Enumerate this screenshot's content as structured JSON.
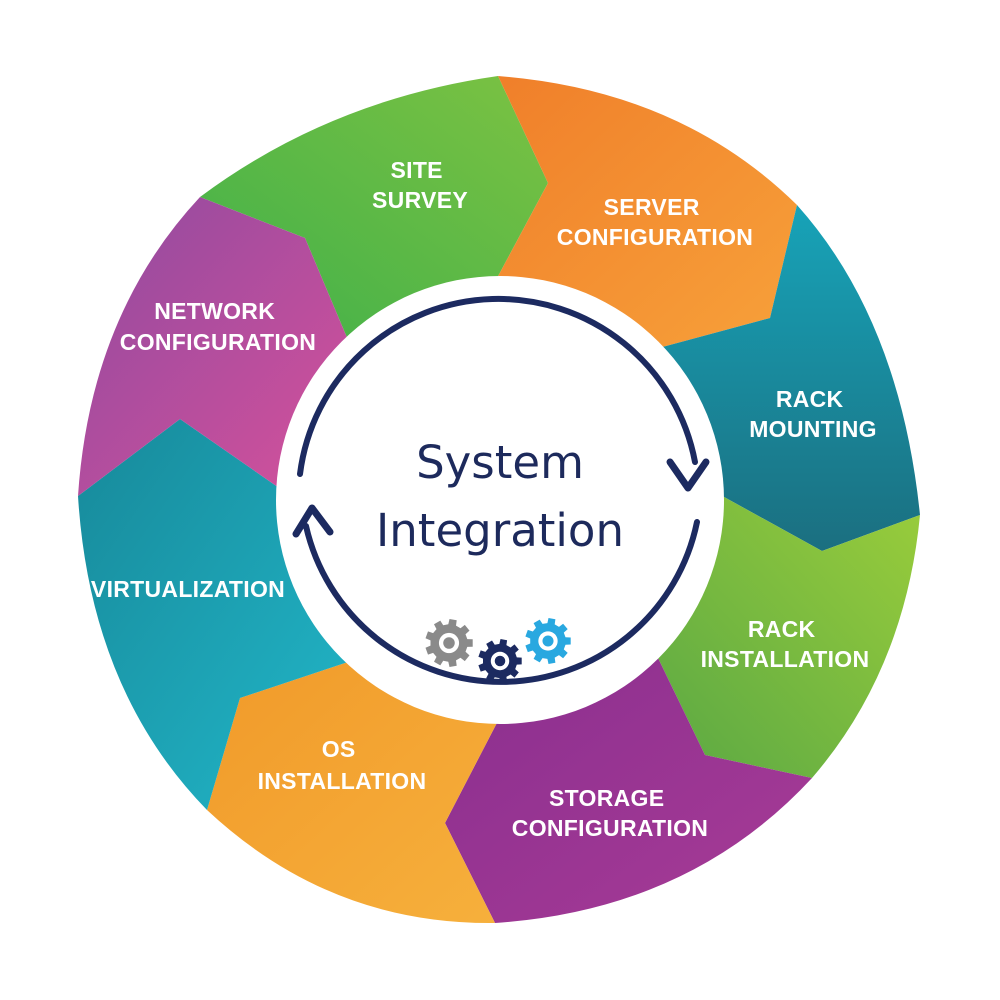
{
  "center": {
    "line1": "System",
    "line2": "Integration"
  },
  "colors": {
    "ring_arrow": "#1c2a60",
    "gear_gray": "#8a8a8a",
    "gear_navy": "#1c2a60",
    "gear_blue": "#29a8e0"
  },
  "segments": [
    {
      "id": "site-survey",
      "lines": [
        "SITE",
        "SURVEY"
      ],
      "color_a": "#3fb04a",
      "color_b": "#7cc242"
    },
    {
      "id": "server-configuration",
      "lines": [
        "SERVER",
        "CONFIGURATION"
      ],
      "color_a": "#f07f2a",
      "color_b": "#f7a13a"
    },
    {
      "id": "rack-mounting",
      "lines": [
        "RACK",
        "MOUNTING"
      ],
      "color_a": "#17a3b8",
      "color_b": "#1b6f80"
    },
    {
      "id": "rack-installation",
      "lines": [
        "RACK",
        "INSTALLATION"
      ],
      "color_a": "#9acd3b",
      "color_b": "#5aa844"
    },
    {
      "id": "storage-configuration",
      "lines": [
        "STORAGE",
        "CONFIGURATION"
      ],
      "color_a": "#8a2f8f",
      "color_b": "#a83b96"
    },
    {
      "id": "os-installation",
      "lines": [
        "OS",
        "INSTALLATION"
      ],
      "color_a": "#f19a2a",
      "color_b": "#f6b03c"
    },
    {
      "id": "virtualization",
      "lines": [
        "VIRTUALIZATION"
      ],
      "color_a": "#17899a",
      "color_b": "#22b7c9"
    },
    {
      "id": "network-configuration",
      "lines": [
        "NETWORK",
        "CONFIGURATION"
      ],
      "color_a": "#8f4aa0",
      "color_b": "#d6519b"
    }
  ]
}
